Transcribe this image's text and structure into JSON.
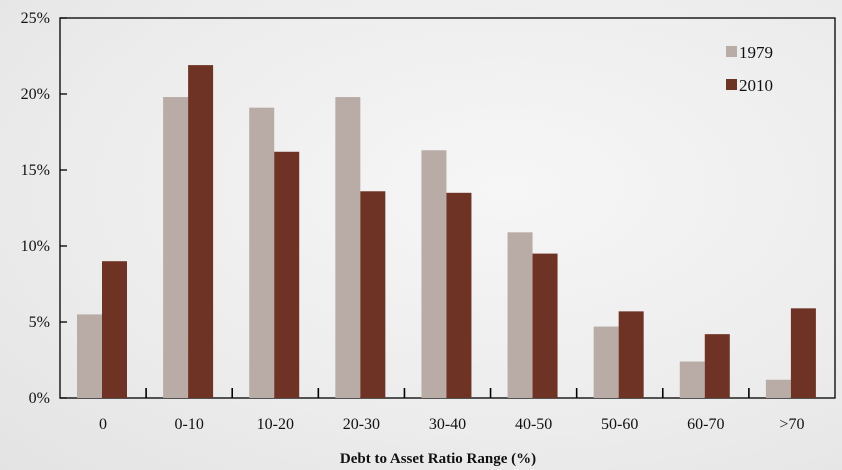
{
  "chart_data": {
    "type": "bar",
    "title": "",
    "xlabel": "Debt to Asset Ratio Range (%)",
    "ylabel": "",
    "categories": [
      "0",
      "0-10",
      "10-20",
      "20-30",
      "30-40",
      "40-50",
      "50-60",
      "60-70",
      ">70"
    ],
    "series": [
      {
        "name": "1979",
        "values": [
          5.5,
          19.8,
          19.1,
          19.8,
          16.3,
          10.9,
          4.7,
          2.4,
          1.2
        ],
        "color": "#b9aca6"
      },
      {
        "name": "2010",
        "values": [
          9.0,
          21.9,
          16.2,
          13.6,
          13.5,
          9.5,
          5.7,
          4.2,
          5.9
        ],
        "color": "#6e3325"
      }
    ],
    "ylim": [
      0,
      25
    ],
    "yticks": [
      0,
      5,
      10,
      15,
      20,
      25
    ],
    "ytick_labels": [
      "0%",
      "5%",
      "10%",
      "15%",
      "20%",
      "25%"
    ],
    "grid": false,
    "legend_position": "top-right"
  }
}
